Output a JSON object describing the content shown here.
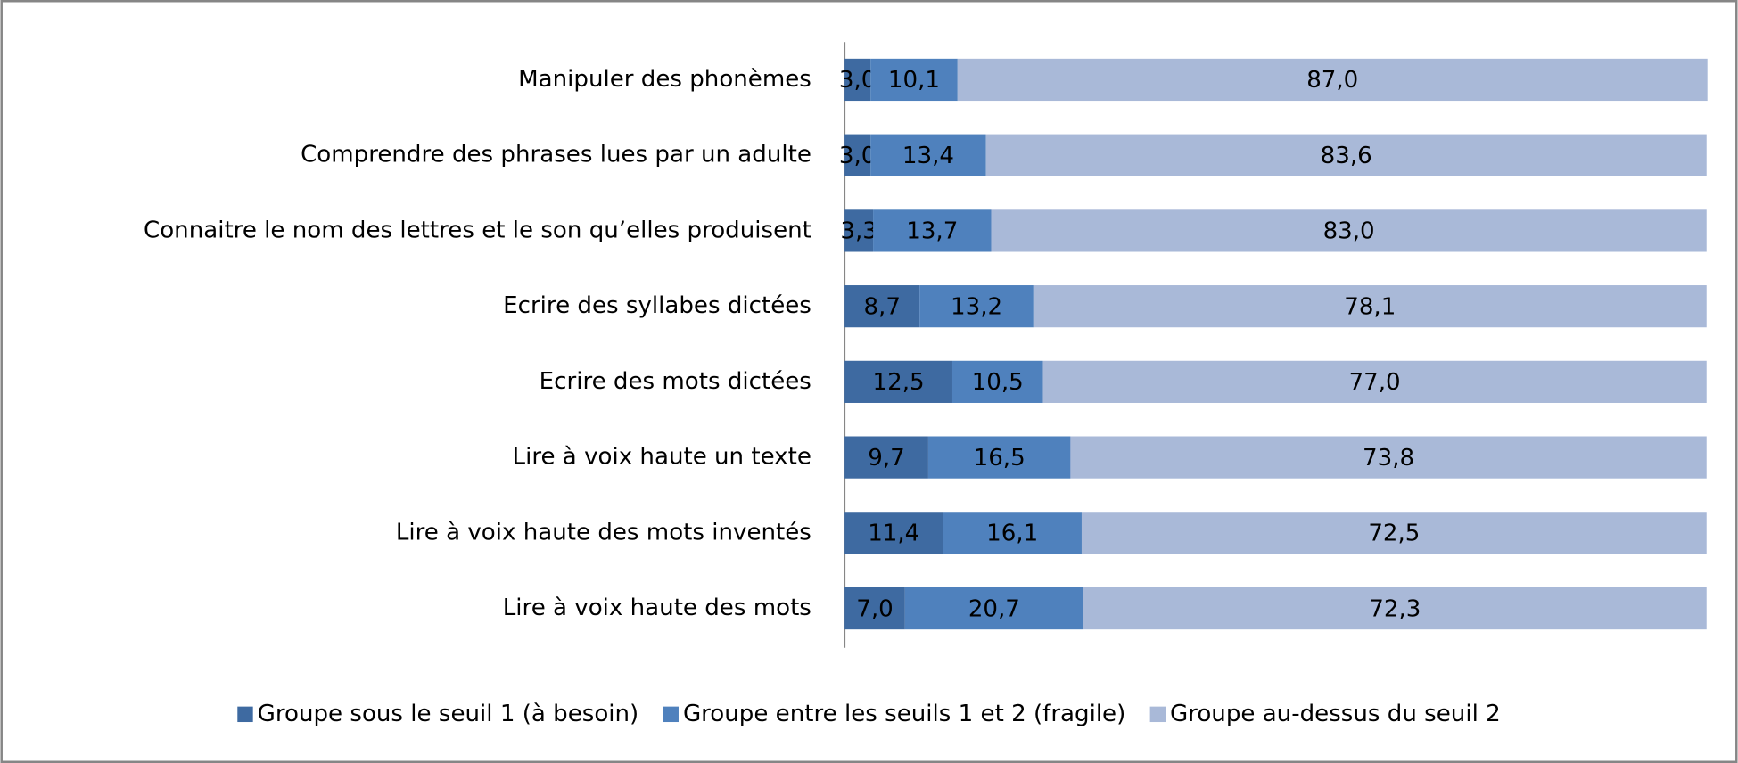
{
  "chart_data": {
    "type": "stacked-barh",
    "categories": [
      "Manipuler des phonèmes",
      "Comprendre des phrases lues par un adulte",
      "Connaitre le nom des lettres et le son qu’elles produisent",
      "Ecrire des syllabes dictées",
      "Ecrire des mots dictées",
      "Lire à voix haute un texte",
      "Lire à voix haute des mots inventés",
      "Lire à voix haute des mots"
    ],
    "series": [
      {
        "name": "Groupe sous le seuil 1 (à besoin)",
        "color": "#3e6aa1",
        "label_color": "#ffffff",
        "values": [
          3.0,
          3.0,
          3.3,
          8.7,
          12.5,
          9.7,
          11.4,
          7.0
        ],
        "value_labels": [
          "3,0",
          "3,0",
          "3,3",
          "8,7",
          "12,5",
          "9,7",
          "11,4",
          "7,0"
        ]
      },
      {
        "name": "Groupe entre les seuils 1 et 2 (fragile)",
        "color": "#4f81bd",
        "label_color": "#000000",
        "values": [
          10.1,
          13.4,
          13.7,
          13.2,
          10.5,
          16.5,
          16.1,
          20.7
        ],
        "value_labels": [
          "10,1",
          "13,4",
          "13,7",
          "13,2",
          "10,5",
          "16,5",
          "16,1",
          "20,7"
        ]
      },
      {
        "name": "Groupe au-dessus du seuil 2",
        "color": "#a9b9d8",
        "label_color": "#000000",
        "values": [
          87.0,
          83.6,
          83.0,
          78.1,
          77.0,
          73.8,
          72.5,
          72.3
        ],
        "value_labels": [
          "87,0",
          "83,6",
          "83,0",
          "78,1",
          "77,0",
          "73,8",
          "72,5",
          "72,3"
        ]
      }
    ],
    "xlim": [
      0,
      100
    ],
    "legend": "bottom"
  }
}
